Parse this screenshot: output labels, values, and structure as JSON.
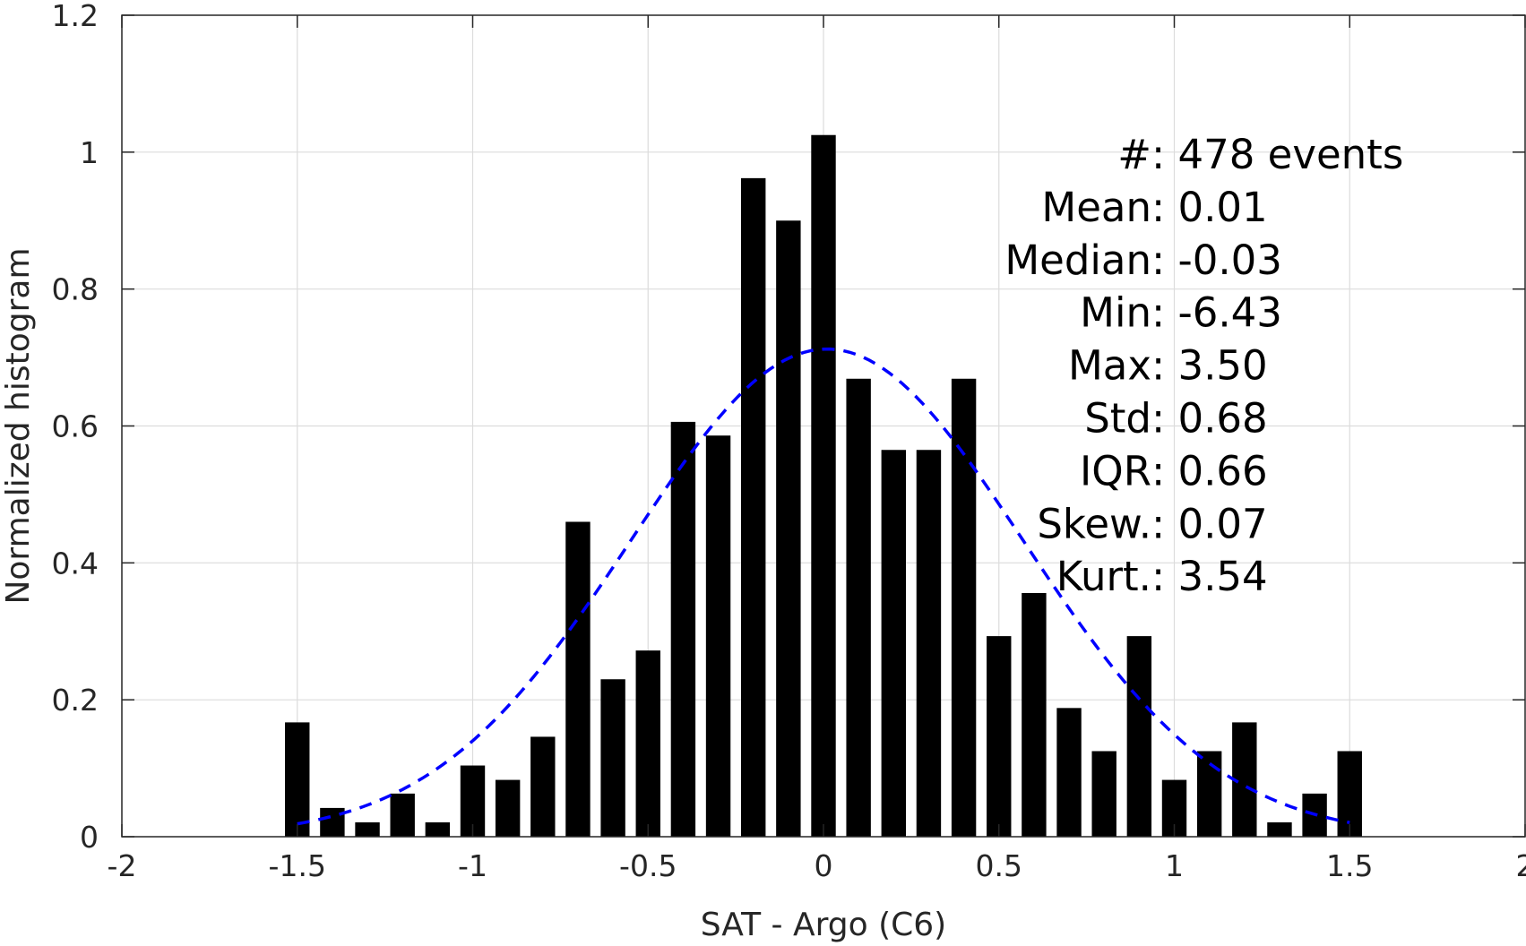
{
  "chart_data": {
    "type": "bar",
    "xlabel": "SAT - Argo (C6)",
    "ylabel": "Normalized histogram",
    "xlim": [
      -2,
      2
    ],
    "ylim": [
      0,
      1.2
    ],
    "grid": true,
    "x_ticks": [
      -2,
      -1.5,
      -1,
      -0.5,
      0,
      0.5,
      1,
      1.5,
      2
    ],
    "x_tick_labels": [
      "-2",
      "-1.5",
      "-1",
      "-0.5",
      "0",
      "0.5",
      "1",
      "1.5",
      "2"
    ],
    "y_ticks": [
      0,
      0.2,
      0.4,
      0.6,
      0.8,
      1,
      1.2
    ],
    "y_tick_labels": [
      "0",
      "0.2",
      "0.4",
      "0.6",
      "0.8",
      "1",
      "1.2"
    ],
    "bar_width": 0.07,
    "series": [
      {
        "type": "bar",
        "color": "#000000",
        "x": [
          -1.5,
          -1.4,
          -1.3,
          -1.2,
          -1.1,
          -1.0,
          -0.9,
          -0.8,
          -0.7,
          -0.6,
          -0.5,
          -0.4,
          -0.3,
          -0.2,
          -0.1,
          0.0,
          0.1,
          0.2,
          0.3,
          0.4,
          0.5,
          0.6,
          0.7,
          0.8,
          0.9,
          1.0,
          1.1,
          1.2,
          1.3,
          1.4,
          1.5
        ],
        "values": [
          0.167,
          0.042,
          0.021,
          0.063,
          0.021,
          0.104,
          0.083,
          0.146,
          0.46,
          0.23,
          0.272,
          0.606,
          0.586,
          0.962,
          0.9,
          1.025,
          0.669,
          0.565,
          0.565,
          0.669,
          0.293,
          0.356,
          0.188,
          0.125,
          0.293,
          0.083,
          0.125,
          0.167,
          0.021,
          0.063,
          0.125
        ]
      },
      {
        "type": "line",
        "style": "dashed",
        "color": "#0000ff",
        "x_range": [
          -1.5,
          1.5
        ],
        "mean": 0.01,
        "std": 0.56
      }
    ],
    "annotations": [
      {
        "label": "#  ",
        "value": ": 478 events"
      },
      {
        "label": "Mean ",
        "value": ": 0.01"
      },
      {
        "label": "Median ",
        "value": ": -0.03"
      },
      {
        "label": "Min ",
        "value": ": -6.43"
      },
      {
        "label": "Max ",
        "value": ": 3.50"
      },
      {
        "label": "Std ",
        "value": ": 0.68"
      },
      {
        "label": "IQR ",
        "value": ": 0.66"
      },
      {
        "label": "Skew. ",
        "value": ": 0.07"
      },
      {
        "label": "Kurt. ",
        "value": ": 3.54"
      }
    ]
  }
}
